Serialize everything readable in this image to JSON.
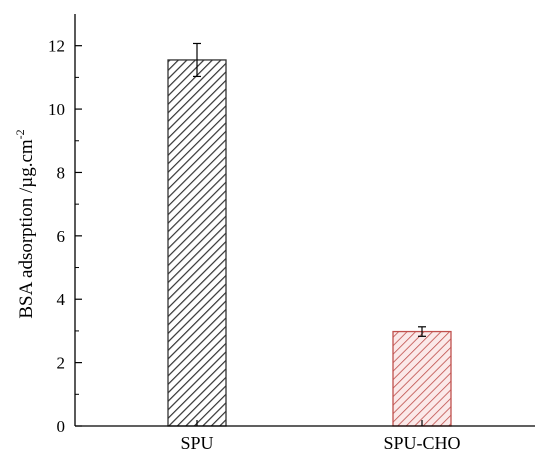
{
  "chart_data": {
    "type": "bar",
    "title": "",
    "xlabel": "",
    "ylabel": "BSA adsorption /µg.cm",
    "ylabel_superscript": "-2",
    "categories": [
      "SPU",
      "SPU-CHO"
    ],
    "values": [
      11.55,
      2.98
    ],
    "errors": [
      0.52,
      0.15
    ],
    "ylim": [
      0,
      13
    ],
    "yticks": [
      0,
      2,
      4,
      6,
      8,
      10,
      12
    ],
    "grid": false,
    "legend": "none",
    "bar_patterns": [
      "diagonal-hatch",
      "diagonal-hatch"
    ],
    "colors": {
      "SPU_hatch": "#333333",
      "SPU_fill": "#ffffff",
      "SPU_CHO_hatch": "#c0504d",
      "SPU_CHO_fill": "#fbe9e9",
      "axis": "#000000"
    }
  }
}
